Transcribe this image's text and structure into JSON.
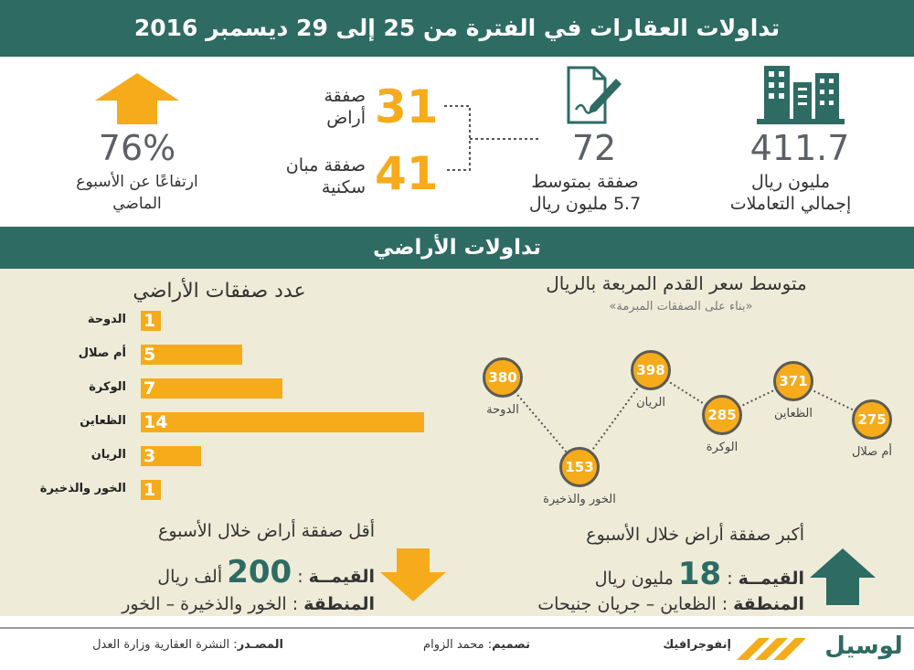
{
  "header": {
    "title": "تداولات العقارات في الفترة من 25 إلى 29 ديسمبر 2016"
  },
  "summary": {
    "total": {
      "value": "411.7",
      "line1": "مليون ريال",
      "line2": "إجمالي التعاملات"
    },
    "deals": {
      "value": "72",
      "line1": "صفقة بمتوسط",
      "line2": "5.7 مليون ريال"
    },
    "land_deals": {
      "value": "31",
      "line1": "صفقة",
      "line2": "أراض"
    },
    "housing_deals": {
      "value": "41",
      "line1": "صفقة مبان",
      "line2": "سكنية"
    },
    "change": {
      "value": "76%",
      "line1": "ارتفاعًا عن الأسبوع",
      "line2": "الماضي"
    }
  },
  "section_title": "تداولات الأراضي",
  "land_count": {
    "title": "عدد صفقات الأراضي",
    "items": [
      {
        "label": "الدوحة",
        "value": 1
      },
      {
        "label": "أم صلال",
        "value": 5
      },
      {
        "label": "الوكرة",
        "value": 7
      },
      {
        "label": "الظعاين",
        "value": 14
      },
      {
        "label": "الريان",
        "value": 3
      },
      {
        "label": "الخور والذخيرة",
        "value": 1
      }
    ]
  },
  "price_chart": {
    "title": "متوسط سعر القدم المربعة بالريال",
    "subtitle": "«بناء على الصفقات المبرمة»",
    "points": [
      {
        "label": "الدوحة",
        "value": 380
      },
      {
        "label": "الخور والذخيرة",
        "value": 153
      },
      {
        "label": "الريان",
        "value": 398
      },
      {
        "label": "الوكرة",
        "value": 285
      },
      {
        "label": "الظعاين",
        "value": 371
      },
      {
        "label": "أم صلال",
        "value": 275
      }
    ]
  },
  "chart_data": [
    {
      "type": "bar",
      "title": "عدد صفقات الأراضي",
      "categories": [
        "الدوحة",
        "أم صلال",
        "الوكرة",
        "الظعاين",
        "الريان",
        "الخور والذخيرة"
      ],
      "values": [
        1,
        5,
        7,
        14,
        3,
        1
      ]
    },
    {
      "type": "line",
      "title": "متوسط سعر القدم المربعة بالريال",
      "subtitle": "«بناء على الصفقات المبرمة»",
      "categories": [
        "الدوحة",
        "الخور والذخيرة",
        "الريان",
        "الوكرة",
        "الظعاين",
        "أم صلال"
      ],
      "values": [
        380,
        153,
        398,
        285,
        371,
        275
      ]
    }
  ],
  "smallest": {
    "title": "أقل صفقة أراض خلال الأسبوع",
    "value_key": "القيمــة",
    "value_num": "200",
    "value_unit": "ألف ريال",
    "area_key": "المنطقة",
    "area_val": "الخور والذخيرة – الخور"
  },
  "largest": {
    "title": "أكبر صفقة أراض خلال الأسبوع",
    "value_key": "القيمــة",
    "value_num": "18",
    "value_unit": "مليون ريال",
    "area_key": "المنطقة",
    "area_val": "الظعاين – جريان جنيحات"
  },
  "footer": {
    "source_key": "المصـدر",
    "source_val": "النشرة العقارية وزارة العدل",
    "design_key": "تصميم",
    "design_val": "محمد الزوام",
    "infographic": "إنفوجرافيك",
    "brand": "لوسيل"
  },
  "colors": {
    "teal": "#2d6b63",
    "orange": "#f6ab1b",
    "cream": "#eeecd8",
    "gray": "#5b6165"
  }
}
